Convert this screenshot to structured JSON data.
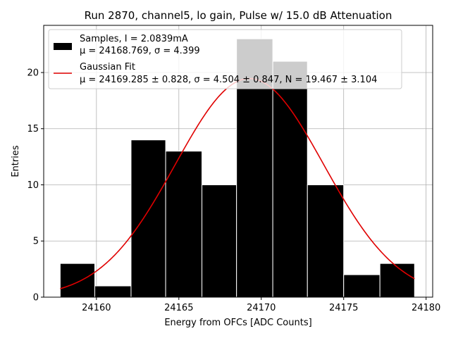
{
  "chart_data": {
    "type": "bar",
    "title": "Run 2870, channel5, lo gain, Pulse w/ 15.0 dB Attenuation",
    "xlabel": "Energy from OFCs [ADC Counts]",
    "ylabel": "Entries",
    "xlim": [
      24156.8,
      24180.4
    ],
    "ylim": [
      0,
      24.2
    ],
    "xticks": [
      24160,
      24165,
      24170,
      24175,
      24180
    ],
    "yticks": [
      0,
      5,
      10,
      15,
      20
    ],
    "grid": true,
    "legend_position": "top-left",
    "bins": [
      {
        "left": 24157.8,
        "right": 24159.9,
        "value": 3
      },
      {
        "left": 24159.9,
        "right": 24162.1,
        "value": 1
      },
      {
        "left": 24162.1,
        "right": 24164.2,
        "value": 14
      },
      {
        "left": 24164.2,
        "right": 24166.4,
        "value": 13
      },
      {
        "left": 24166.4,
        "right": 24168.5,
        "value": 10
      },
      {
        "left": 24168.5,
        "right": 24170.7,
        "value": 23
      },
      {
        "left": 24170.7,
        "right": 24172.8,
        "value": 21
      },
      {
        "left": 24172.8,
        "right": 24175.0,
        "value": 10
      },
      {
        "left": 24175.0,
        "right": 24177.2,
        "value": 2
      },
      {
        "left": 24177.2,
        "right": 24179.3,
        "value": 3
      }
    ],
    "samples_series": {
      "name": "Samples, I = 2.0839mA",
      "stats": "μ = 24168.769, σ = 4.399",
      "color": "#000000"
    },
    "fit_series": {
      "name": "Gaussian Fit",
      "params": "μ = 24169.285 ± 0.828, σ = 4.504 ± 0.847, N = 19.467 ± 3.104",
      "mu": 24169.285,
      "sigma": 4.504,
      "N": 19.467,
      "color": "#e00000"
    }
  }
}
